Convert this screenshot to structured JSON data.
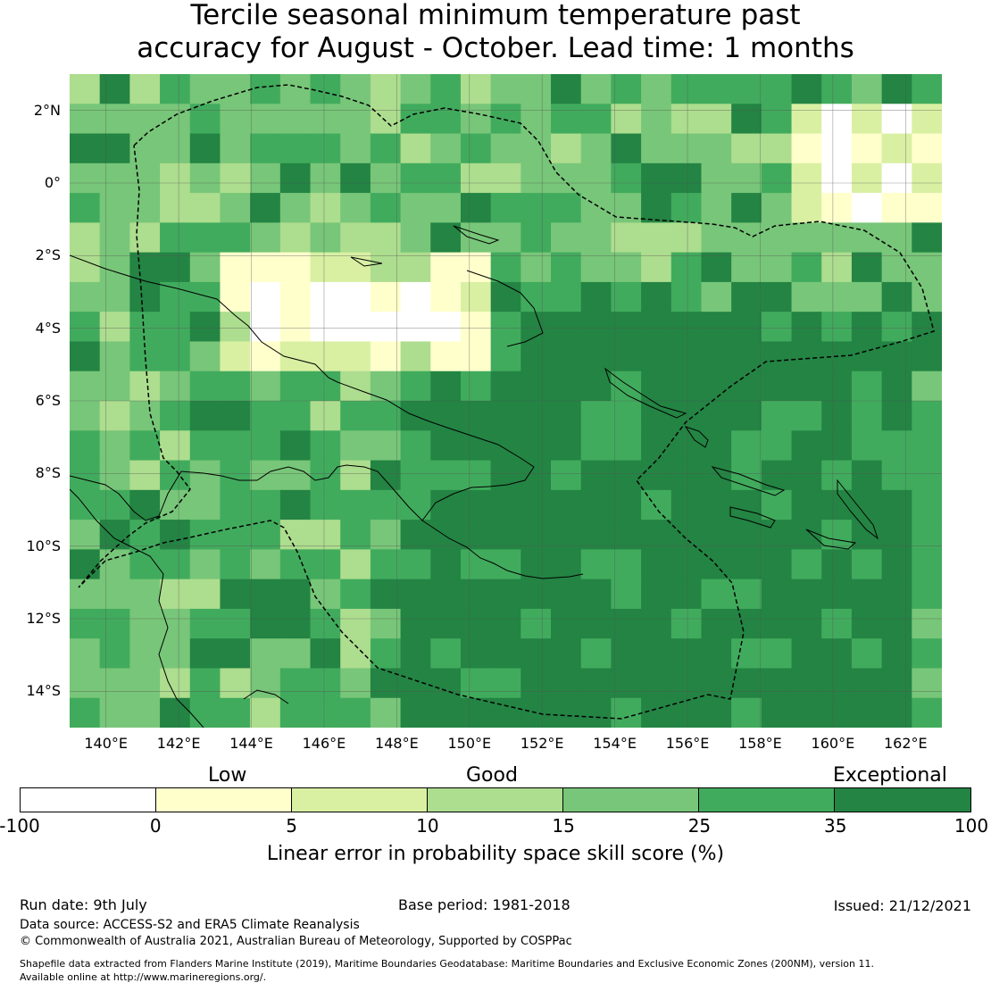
{
  "title": {
    "line1": "Tercile seasonal minimum temperature past",
    "line2": "accuracy for August - October. Lead time: 1 months"
  },
  "map": {
    "lat_ticks": [
      "2°N",
      "0°",
      "2°S",
      "4°S",
      "6°S",
      "8°S",
      "10°S",
      "12°S",
      "14°S"
    ],
    "lon_ticks": [
      "140°E",
      "142°E",
      "144°E",
      "146°E",
      "148°E",
      "150°E",
      "152°E",
      "154°E",
      "156°E",
      "158°E",
      "160°E",
      "162°E"
    ],
    "lat_range": [
      3,
      -15
    ],
    "lon_range": [
      139,
      163
    ],
    "grid_spacing_deg": 2,
    "background_color": "#3aa45a"
  },
  "legend": {
    "categories": {
      "low": "Low",
      "good": "Good",
      "exceptional": "Exceptional"
    },
    "ticks": [
      "-100",
      "0",
      "5",
      "10",
      "15",
      "25",
      "35",
      "100"
    ],
    "colors": [
      "#ffffff",
      "#ffffcc",
      "#d9f0a3",
      "#addd8e",
      "#78c679",
      "#41ab5d",
      "#238443"
    ],
    "label": "Linear error in probability space skill score (%)"
  },
  "footer": {
    "run_date": "Run date: 9th July",
    "base_period": "Base period: 1981-2018",
    "issued": "Issued: 21/12/2021",
    "data_source": "Data source: ACCESS-S2 and ERA5 Climate Reanalysis",
    "copyright": "© Commonwealth of Australia 2021, Australian Bureau of Meteorology, Supported by COSPPac",
    "shapefile_line1": "Shapefile data extracted from Flanders Marine Institute (2019), Maritime Boundaries Geodatabase: Maritime Boundaries and Exclusive Economic Zones (200NM), version 11.",
    "shapefile_line2": "Available online at http://www.marineregions.org/."
  }
}
